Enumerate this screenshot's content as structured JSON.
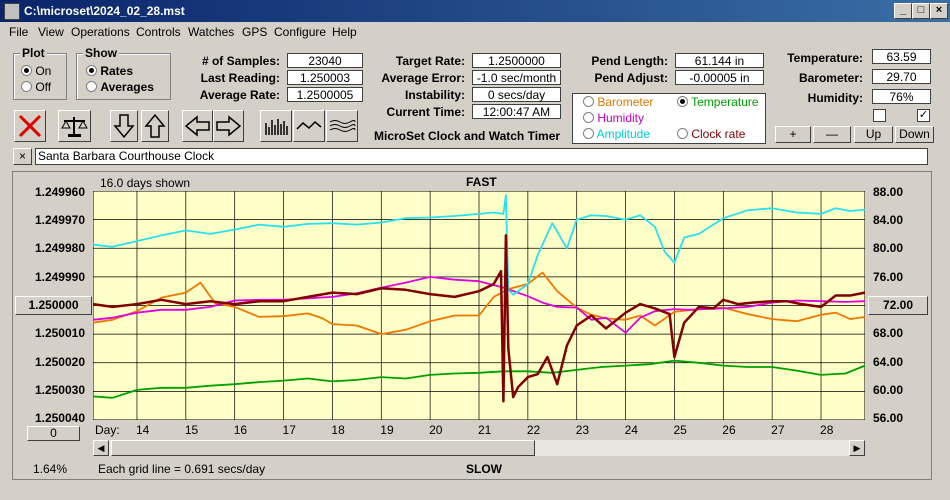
{
  "window": {
    "title": "C:\\microset\\2024_02_28.mst",
    "min": "_",
    "max": "□",
    "close": "×"
  },
  "menu": [
    "File",
    "View",
    "Operations",
    "Controls",
    "Watches",
    "GPS",
    "Configure",
    "Help"
  ],
  "plot_group": {
    "title": "Plot",
    "options": [
      "On",
      "Off"
    ],
    "selected": "On"
  },
  "show_group": {
    "title": "Show",
    "options": [
      "Rates",
      "Averages"
    ],
    "selected": "Rates"
  },
  "stats": [
    {
      "label": "# of Samples:",
      "value": "23040"
    },
    {
      "label": "Last Reading:",
      "value": "1.250003"
    },
    {
      "label": "Average Rate:",
      "value": "1.2500005"
    }
  ],
  "rates": [
    {
      "label": "Target Rate:",
      "value": "1.2500000"
    },
    {
      "label": "Average Error:",
      "value": "-1.0 sec/month"
    },
    {
      "label": "Instability:",
      "value": "0 secs/day"
    },
    {
      "label": "Current Time:",
      "value": "12:00:47 AM"
    }
  ],
  "pend": [
    {
      "label": "Pend Length:",
      "value": "61.144 in"
    },
    {
      "label": "Pend Adjust:",
      "value": "-0.00005 in"
    }
  ],
  "env": [
    {
      "label": "Temperature:",
      "value": "63.59"
    },
    {
      "label": "Barometer:",
      "value": "29.70"
    },
    {
      "label": "Humidity:",
      "value": "76%"
    }
  ],
  "app_caption": "MicroSet Clock and Watch Timer",
  "aux_options": [
    {
      "label": "Barometer",
      "color": "#e07800",
      "selected": false
    },
    {
      "label": "Temperature",
      "color": "#00a000",
      "selected": true
    },
    {
      "label": "Humidity",
      "color": "#c000c0",
      "selected": false
    },
    {
      "label": "Clock rate",
      "color": "#800000",
      "selected": false
    },
    {
      "label": "Amplitude",
      "color": "#00c8d8",
      "selected": false
    }
  ],
  "scale_buttons": [
    "+",
    "—",
    "Up",
    "Down"
  ],
  "checkboxes": [
    {
      "checked": false
    },
    {
      "checked": true
    }
  ],
  "toolbar_icons": [
    "clear-icon",
    "balance-icon",
    "arrow-down-icon",
    "arrow-up-icon",
    "arrow-left-icon",
    "arrow-right-icon",
    "bar-graph-icon",
    "wave-icon",
    "multi-wave-icon"
  ],
  "clock_name": "Santa Barbara Courthouse Clock",
  "clear_name_button": "×",
  "plot": {
    "days_shown": "16.0 days shown",
    "top_label": "FAST",
    "bottom_label": "SLOW",
    "left_axis": [
      "1.249960",
      "1.249970",
      "1.249980",
      "1.249990",
      "1.250000",
      "1.250010",
      "1.250020",
      "1.250030",
      "1.250040"
    ],
    "left_center_button": "1.250000",
    "right_axis": [
      "88.00",
      "84.00",
      "80.00",
      "76.00",
      "72.00",
      "68.00",
      "64.00",
      "60.00",
      "56.00"
    ],
    "right_center_button": "72.00",
    "day_label": "Day:",
    "days": [
      "14",
      "15",
      "16",
      "17",
      "18",
      "19",
      "20",
      "21",
      "22",
      "23",
      "24",
      "25",
      "26",
      "27",
      "28"
    ],
    "zero_button": "0",
    "percent": "1.64%",
    "grid_note": "Each grid line = 0.691 secs/day"
  },
  "colors": {
    "plot_bg": "#ffffc8",
    "rate": "#800000",
    "temperature": "#00a000",
    "humidity": "#e000e0",
    "barometer": "#f07800",
    "amplitude": "#28e0f0"
  },
  "chart_data": {
    "type": "line",
    "x_range": [
      13.1,
      28.9
    ],
    "left_ylim": [
      1.25004,
      1.24996
    ],
    "right_ylim": [
      56,
      88
    ],
    "series": [
      {
        "name": "Clock rate",
        "axis": "left",
        "x": [
          13.1,
          13.5,
          14,
          14.5,
          15,
          15.5,
          16,
          16.5,
          17,
          17.5,
          18,
          18.5,
          19,
          19.5,
          20,
          20.5,
          21,
          21.3,
          21.45,
          21.5,
          21.55,
          21.6,
          21.7,
          21.8,
          22,
          22.2,
          22.4,
          22.6,
          22.8,
          23,
          23.3,
          23.6,
          24,
          24.3,
          24.6,
          24.9,
          25,
          25.2,
          25.5,
          25.8,
          26,
          26.3,
          26.6,
          27,
          27.3,
          27.6,
          28,
          28.3,
          28.6,
          28.9
        ],
        "y": [
          1.2500005,
          1.2499995,
          1.2500005,
          1.250002,
          1.2500005,
          1.2500015,
          1.2500005,
          1.2500015,
          1.2500015,
          1.250003,
          1.2500045,
          1.250004,
          1.250006,
          1.2500055,
          1.250004,
          1.250003,
          1.250005,
          1.2500075,
          1.250012,
          1.2499665,
          1.2500245,
          1.249985,
          1.249968,
          1.2499715,
          1.249975,
          1.249976,
          1.249982,
          1.2499725,
          1.249986,
          1.249993,
          1.2499965,
          1.249992,
          1.2499975,
          1.2500005,
          1.249999,
          1.249997,
          1.249982,
          1.249994,
          1.2499995,
          1.249999,
          1.250002,
          1.2500005,
          1.250001,
          1.2500015,
          1.2500015,
          1.2500005,
          1.2499995,
          1.2500035,
          1.2500035,
          1.2500045
        ]
      },
      {
        "name": "Temperature",
        "axis": "right",
        "x": [
          13.1,
          13.5,
          14,
          14.5,
          15,
          15.5,
          16,
          16.5,
          17,
          17.5,
          18,
          18.5,
          19,
          19.5,
          20,
          20.5,
          21,
          21.5,
          22,
          22.5,
          23,
          23.5,
          24,
          24.5,
          25,
          25.5,
          26,
          26.5,
          27,
          27.5,
          28,
          28.5,
          28.9
        ],
        "y": [
          59.3,
          59.1,
          60.2,
          60.5,
          60.5,
          60.8,
          61.0,
          61.3,
          61.5,
          61.8,
          61.4,
          61.6,
          62.0,
          61.8,
          62.3,
          62.5,
          62.6,
          62.8,
          62.8,
          62.6,
          63.0,
          63.4,
          63.6,
          63.8,
          64.3,
          64.0,
          63.6,
          63.4,
          63.4,
          62.9,
          62.3,
          62.5,
          63.6
        ]
      },
      {
        "name": "Humidity",
        "axis": "right",
        "x": [
          13.1,
          13.5,
          14,
          14.5,
          15,
          15.5,
          16,
          16.5,
          17,
          17.5,
          18,
          18.5,
          19,
          19.5,
          20,
          20.5,
          21,
          21.5,
          22,
          22.3,
          22.6,
          23,
          23.3,
          23.6,
          24,
          24.3,
          24.6,
          25,
          25.3,
          25.6,
          26,
          26.5,
          27,
          27.5,
          28,
          28.5,
          28.9
        ],
        "y": [
          70.0,
          70.3,
          71.0,
          71.4,
          71.4,
          71.8,
          72.7,
          72.8,
          72.8,
          73.0,
          73.2,
          73.7,
          74.5,
          75.2,
          76.0,
          75.6,
          75.4,
          74.5,
          73.3,
          72.4,
          71.8,
          71.7,
          70.0,
          70.3,
          68.2,
          70.3,
          71.2,
          71.5,
          71.4,
          71.5,
          71.6,
          71.8,
          72.4,
          72.7,
          72.6,
          72.5,
          72.6
        ]
      },
      {
        "name": "Barometer",
        "axis": "right",
        "x": [
          13.1,
          13.5,
          14,
          14.5,
          15,
          15.3,
          15.6,
          16,
          16.5,
          17,
          17.5,
          17.8,
          18,
          18.5,
          19,
          19.5,
          20,
          20.5,
          21,
          21.3,
          21.6,
          22,
          22.3,
          22.6,
          23,
          23.3,
          23.6,
          24,
          24.3,
          24.6,
          25,
          25.5,
          26,
          26.5,
          27,
          27.5,
          28,
          28.3,
          28.6,
          28.9
        ],
        "y": [
          69.6,
          70.0,
          71.2,
          73.1,
          73.8,
          75.2,
          72.3,
          71.8,
          70.4,
          70.5,
          70.9,
          70.2,
          69.4,
          69.2,
          68.0,
          68.6,
          69.8,
          70.6,
          70.6,
          73.2,
          74.3,
          75.0,
          76.6,
          74.0,
          71.7,
          70.7,
          70.2,
          70.0,
          70.6,
          69.2,
          71.1,
          71.5,
          71.7,
          70.8,
          70.1,
          69.8,
          70.7,
          71.0,
          70.1,
          70.4
        ]
      },
      {
        "name": "Amplitude",
        "axis": "right",
        "x": [
          13.1,
          13.5,
          14,
          14.5,
          15,
          15.5,
          16,
          16.5,
          17,
          17.5,
          18,
          18.5,
          19,
          19.5,
          20,
          20.5,
          21,
          21.3,
          21.5,
          21.55,
          21.6,
          21.7,
          22,
          22.2,
          22.5,
          22.8,
          23,
          23.3,
          23.6,
          24,
          24.3,
          24.6,
          24.8,
          25,
          25.2,
          25.5,
          26,
          26.5,
          27,
          27.5,
          28,
          28.3,
          28.6,
          28.9
        ],
        "y": [
          80.5,
          80.2,
          81.0,
          81.8,
          82.5,
          82.0,
          82.6,
          83.3,
          83.0,
          83.4,
          83.5,
          83.3,
          83.6,
          84.2,
          84.3,
          84.5,
          84.8,
          85.0,
          84.8,
          87.4,
          74.2,
          73.5,
          75.0,
          79.0,
          83.5,
          80.0,
          84.0,
          84.6,
          84.5,
          84.0,
          84.6,
          83.0,
          79.5,
          78.0,
          81.5,
          82.0,
          84.2,
          85.3,
          85.6,
          85.0,
          84.8,
          85.6,
          85.2,
          85.4
        ]
      }
    ]
  }
}
